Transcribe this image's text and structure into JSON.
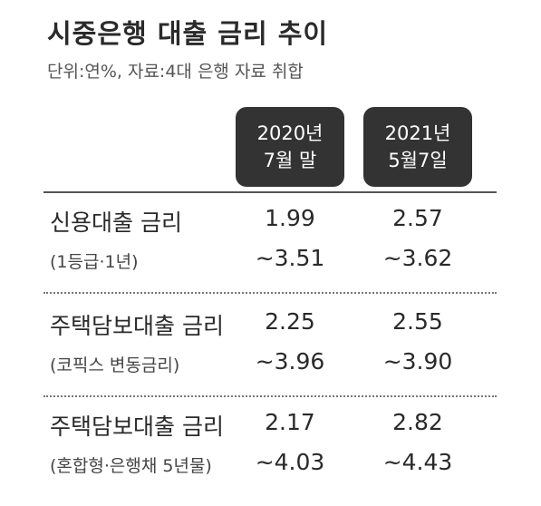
{
  "header": {
    "title": "시중은행 대출 금리 추이",
    "subtitle": "단위:연%, 자료:4대 은행 자료 취합"
  },
  "table": {
    "columns": [
      [
        "2020년",
        "7월 말"
      ],
      [
        "2021년",
        "5월7일"
      ]
    ],
    "rows": [
      {
        "name": "신용대출 금리",
        "note": "(1등급·1년)",
        "values": [
          [
            "1.99",
            "~3.51"
          ],
          [
            "2.57",
            "~3.62"
          ]
        ]
      },
      {
        "name": "주택담보대출 금리",
        "note": "(코픽스 변동금리)",
        "values": [
          [
            "2.25",
            "~3.96"
          ],
          [
            "2.55",
            "~3.90"
          ]
        ]
      },
      {
        "name": "주택담보대출 금리",
        "note": "(혼합형·은행채 5년물)",
        "values": [
          [
            "2.17",
            "~4.03"
          ],
          [
            "2.82",
            "~4.43"
          ]
        ]
      }
    ]
  }
}
